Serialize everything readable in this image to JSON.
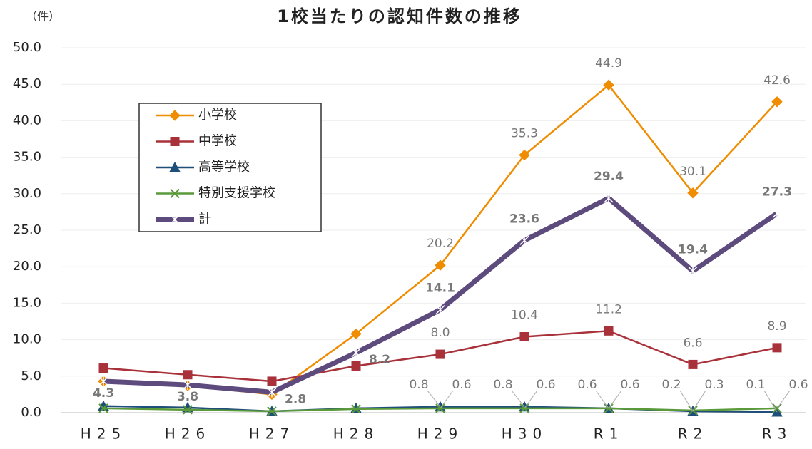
{
  "chart_data": {
    "type": "line",
    "title": "1校当たりの認知件数の推移",
    "y_label": "（件）",
    "categories": [
      "H25",
      "H26",
      "H27",
      "H28",
      "H29",
      "H30",
      "R1",
      "R2",
      "R3"
    ],
    "ylim": [
      0,
      50
    ],
    "yticks": [
      {
        "value": 0,
        "label": "0.0"
      },
      {
        "value": 5,
        "label": "5.0"
      },
      {
        "value": 10,
        "label": "10.0"
      },
      {
        "value": 15,
        "label": "15.0"
      },
      {
        "value": 20,
        "label": "20.0"
      },
      {
        "value": 25,
        "label": "25.0"
      },
      {
        "value": 30,
        "label": "30.0"
      },
      {
        "value": 35,
        "label": "35.0"
      },
      {
        "value": 40,
        "label": "40.0"
      },
      {
        "value": 45,
        "label": "45.0"
      },
      {
        "value": 50,
        "label": "50.0"
      }
    ],
    "grid": true,
    "legend": "upper left",
    "series": [
      {
        "name": "小学校",
        "color": "#f08c00",
        "marker": "diamond",
        "values": [
          4.3,
          3.7,
          2.5,
          10.8,
          20.2,
          35.3,
          44.9,
          30.1,
          42.6
        ],
        "value_labels": [
          null,
          null,
          null,
          null,
          "20.2",
          "35.3",
          "44.9",
          "30.1",
          "42.6"
        ]
      },
      {
        "name": "中学校",
        "color": "#a8313a",
        "marker": "square",
        "values": [
          6.1,
          5.2,
          4.3,
          6.4,
          8.0,
          10.4,
          11.2,
          6.6,
          8.9
        ],
        "value_labels": [
          null,
          null,
          null,
          null,
          "8.0",
          "10.4",
          "11.2",
          "6.6",
          "8.9"
        ]
      },
      {
        "name": "高等学校",
        "color": "#1f4e79",
        "marker": "triangle",
        "values": [
          0.9,
          0.7,
          0.2,
          0.6,
          0.8,
          0.8,
          0.6,
          0.2,
          0.1
        ],
        "value_labels": [
          null,
          null,
          null,
          null,
          "0.8",
          "0.8",
          "0.6",
          "0.2",
          "0.1"
        ]
      },
      {
        "name": "特別支援学校",
        "color": "#5a9a3a",
        "marker": "x",
        "values": [
          0.6,
          0.4,
          0.2,
          0.5,
          0.6,
          0.6,
          0.6,
          0.3,
          0.6
        ],
        "value_labels": [
          null,
          null,
          null,
          null,
          "0.6",
          "0.6",
          "0.6",
          "0.3",
          "0.6"
        ]
      },
      {
        "name": "計",
        "color": "#5e4b7e",
        "marker": "star",
        "values": [
          4.3,
          3.8,
          2.8,
          8.2,
          14.1,
          23.6,
          29.4,
          19.4,
          27.3
        ],
        "value_labels": [
          "4.3",
          "3.8",
          "2.8",
          "8.2",
          "14.1",
          "23.6",
          "29.4",
          "19.4",
          "27.3"
        ]
      }
    ]
  }
}
